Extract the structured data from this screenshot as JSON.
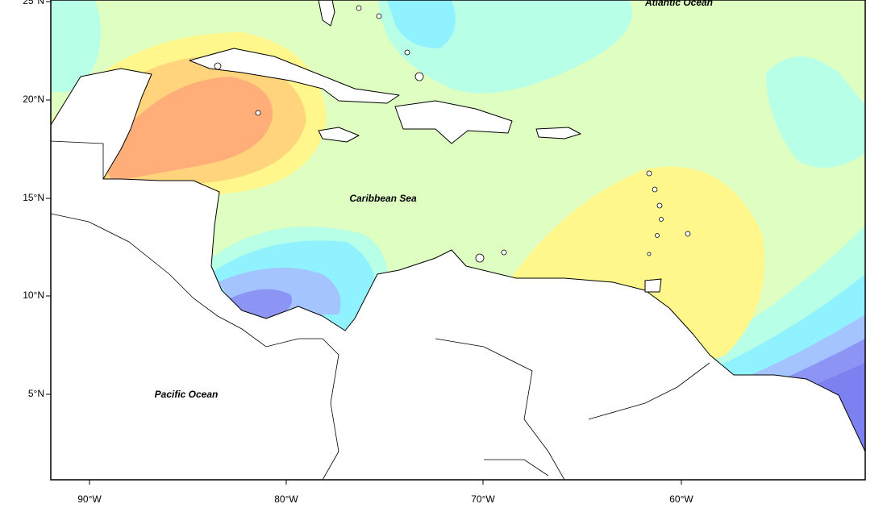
{
  "map": {
    "lat_ticks": [
      "25°N",
      "20°N",
      "15°N",
      "10°N",
      "5°N"
    ],
    "lon_ticks": [
      "90°W",
      "80°W",
      "70°W",
      "60°W"
    ],
    "labels": [
      "Atlantic Ocean",
      "Caribbean Sea",
      "Pacific Ocean"
    ]
  }
}
